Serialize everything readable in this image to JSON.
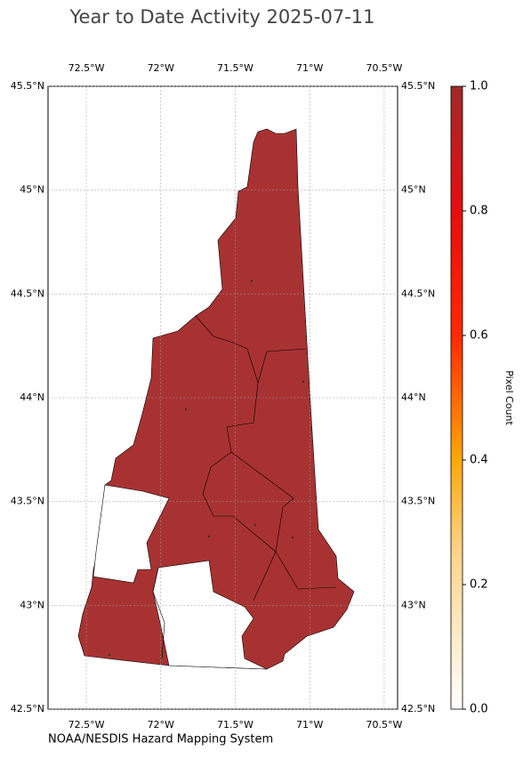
{
  "title": "Year to Date Activity 2025-07-11",
  "map": {
    "xlim": [
      -72.757,
      -70.41
    ],
    "ylim": [
      42.5,
      45.5
    ],
    "xticks": [
      {
        "value": -72.5,
        "label": "72.5°W"
      },
      {
        "value": -72,
        "label": "72°W"
      },
      {
        "value": -71.5,
        "label": "71.5°W"
      },
      {
        "value": -71,
        "label": "71°W"
      },
      {
        "value": -70.5,
        "label": "70.5°W"
      }
    ],
    "yticks": [
      {
        "value": 42.5,
        "label": "42.5°N"
      },
      {
        "value": 43,
        "label": "43°N"
      },
      {
        "value": 43.5,
        "label": "43.5°N"
      },
      {
        "value": 44,
        "label": "44°N"
      },
      {
        "value": 44.5,
        "label": "44.5°N"
      },
      {
        "value": 45,
        "label": "45°N"
      },
      {
        "value": 45.5,
        "label": "45.5°N"
      }
    ],
    "grid": true
  },
  "colorbar": {
    "label": "Pixel Count",
    "lim": [
      0,
      1
    ],
    "ticks": [
      {
        "value": 0,
        "label": "0.0"
      },
      0.2,
      0.4,
      0.6,
      0.8,
      {
        "value": 1,
        "label": "1.0"
      }
    ]
  },
  "credit": "NOAA/NESDIS Hazard Mapping System"
}
